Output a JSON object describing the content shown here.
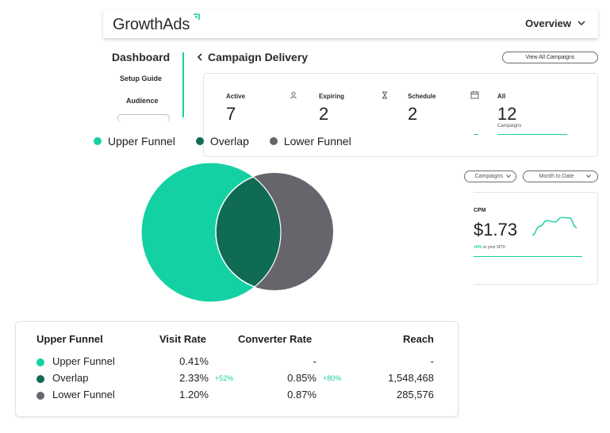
{
  "header": {
    "logo": "GrowthAds",
    "view_select": "Overview"
  },
  "sidebar": {
    "title": "Dashboard",
    "items": [
      "Setup Guide",
      "Audience"
    ]
  },
  "main": {
    "title": "Campaign Delivery",
    "view_all_button": "View All Campaigns",
    "stats": [
      {
        "label": "Active",
        "value": "7"
      },
      {
        "label": "Expiring",
        "value": "2"
      },
      {
        "label": "Schedule",
        "value": "2"
      },
      {
        "label": "All",
        "value": "12",
        "sub": "Campaigns"
      }
    ],
    "filters": [
      "Campaigns",
      "Month to Date"
    ],
    "cpm": {
      "label": "CPM",
      "value": "$1.73",
      "delta": "+6%",
      "delta_note": "vs prior MTD",
      "trend": [
        0.2,
        0.55,
        0.78,
        0.72,
        0.9,
        0.88,
        0.5
      ]
    }
  },
  "venn": {
    "legend": [
      {
        "label": "Upper Funnel",
        "color": "#14d1a3"
      },
      {
        "label": "Overlap",
        "color": "#0f6b54"
      },
      {
        "label": "Lower Funnel",
        "color": "#66656c"
      }
    ]
  },
  "table": {
    "headers": [
      "Upper Funnel",
      "Visit Rate",
      "Converter Rate",
      "Reach"
    ],
    "rows": [
      {
        "name": "Upper Funnel",
        "color": "#14d1a3",
        "visit": "0.41%",
        "visit_delta": "",
        "conv": "-",
        "conv_delta": "",
        "reach": "-"
      },
      {
        "name": "Overlap",
        "color": "#0f6b54",
        "visit": "2.33%",
        "visit_delta": "+52%",
        "conv": "0.85%",
        "conv_delta": "+80%",
        "reach": "1,548,468"
      },
      {
        "name": "Lower Funnel",
        "color": "#66656c",
        "visit": "1.20%",
        "visit_delta": "",
        "conv": "0.87%",
        "conv_delta": "",
        "reach": "285,576"
      }
    ]
  }
}
